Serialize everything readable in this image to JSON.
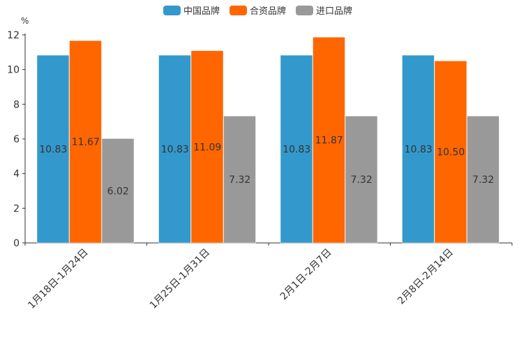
{
  "chart_data": {
    "type": "bar",
    "title": "",
    "xlabel": "",
    "ylabel": "%",
    "ylim": [
      0,
      12
    ],
    "yticks": [
      0,
      2,
      4,
      6,
      8,
      10,
      12
    ],
    "legend_position": "top-center",
    "grid": false,
    "categories": [
      "1月18日-1月24日",
      "1月25日-1月31日",
      "2月1日-2月7日",
      "2月8日-2月14日"
    ],
    "series": [
      {
        "name": "中国品牌",
        "color": "#3399cc",
        "values": [
          10.83,
          10.83,
          10.83,
          10.83
        ],
        "labels": [
          "10.83",
          "10.83",
          "10.83",
          "10.83"
        ]
      },
      {
        "name": "合资品牌",
        "color": "#ff6600",
        "values": [
          11.67,
          11.09,
          11.87,
          10.5
        ],
        "labels": [
          "11.67",
          "11.09",
          "11.87",
          "10.50"
        ]
      },
      {
        "name": "进口品牌",
        "color": "#999999",
        "values": [
          6.02,
          7.32,
          7.32,
          7.32
        ],
        "labels": [
          "6.02",
          "7.32",
          "7.32",
          "7.32"
        ]
      }
    ]
  }
}
